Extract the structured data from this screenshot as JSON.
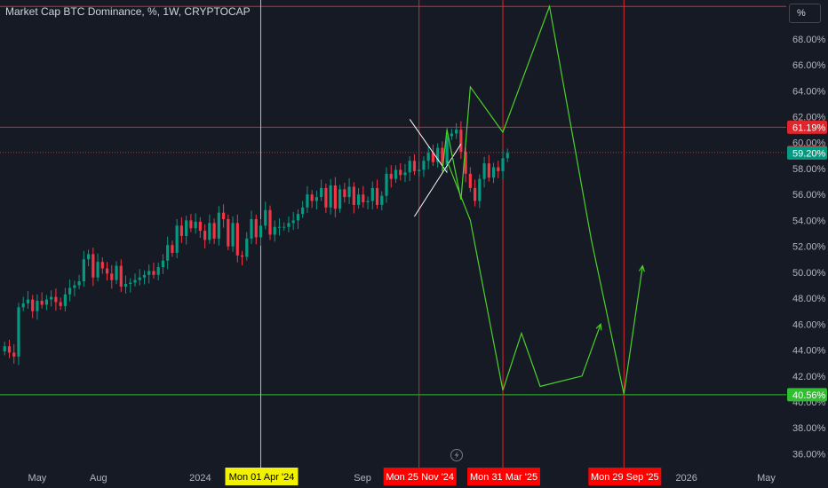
{
  "header": {
    "title": "Market Cap BTC Dominance, %, 1W, CRYPTOCAP",
    "unit_button": "%"
  },
  "colors": {
    "background": "#161a25",
    "up": "#089981",
    "down": "#f23645",
    "red_line": "#e0262c",
    "green_line": "#2fbf2f",
    "projection": "#4cd12a",
    "crosshair": "#c9c93a",
    "grid_text": "#b2b5be"
  },
  "chart_data": {
    "type": "candlestick",
    "title": "Market Cap BTC Dominance, %, 1W, CRYPTOCAP",
    "x_range": [
      "2023-03-06",
      "2026-05-31"
    ],
    "ylim": [
      34.8,
      71.0
    ],
    "y_ticks": [
      36,
      38,
      40,
      42,
      44,
      46,
      48,
      50,
      52,
      54,
      56,
      58,
      60,
      62,
      64,
      66,
      68
    ],
    "x_tick_labels": [
      {
        "label": "May",
        "date": "2023-05-01"
      },
      {
        "label": "Aug",
        "date": "2023-08-01"
      },
      {
        "label": "2024",
        "date": "2024-01-01"
      },
      {
        "label": "Sep",
        "date": "2024-09-01"
      },
      {
        "label": "2026",
        "date": "2026-01-01"
      },
      {
        "label": "May",
        "date": "2026-05-01"
      }
    ],
    "price_labels": [
      {
        "value": 61.19,
        "text": "61.19%",
        "color": "#e0262c"
      },
      {
        "value": 59.24,
        "text": "59.24%",
        "color": "#e0262c"
      },
      {
        "value": 59.2,
        "text": "59.20%",
        "color": "#089981"
      },
      {
        "value": 40.56,
        "text": "40.56%",
        "color": "#2fbf2f"
      }
    ],
    "horizontal_lines": [
      {
        "value": 70.5,
        "color": "#e0262c",
        "style": "solid"
      },
      {
        "value": 61.19,
        "color": "#e0262c",
        "style": "solid"
      },
      {
        "value": 59.24,
        "color": "#e0262c",
        "style": "dotted"
      },
      {
        "value": 40.56,
        "color": "#2fbf2f",
        "style": "solid"
      }
    ],
    "vertical_markers": [
      {
        "date": "2024-04-01",
        "text": "Mon 01 Apr '24",
        "bg": "#f2f200",
        "fg": "#000000"
      },
      {
        "date": "2024-11-25",
        "text": "Mon 25 Nov '24",
        "bg": "#ff0000",
        "fg": "#ffffff"
      },
      {
        "date": "2025-03-31",
        "text": "Mon 31 Mar '25",
        "bg": "#ff0000",
        "fg": "#ffffff"
      },
      {
        "date": "2025-09-29",
        "text": "Mon 29 Sep '25",
        "bg": "#ff0000",
        "fg": "#ffffff"
      }
    ],
    "candles_weekly_close": [
      44.3,
      43.8,
      43.5,
      47.3,
      47.6,
      47.9,
      47.0,
      47.8,
      47.5,
      47.9,
      48.1,
      47.7,
      47.4,
      48.3,
      48.8,
      49.0,
      49.3,
      51.0,
      51.4,
      49.6,
      50.8,
      50.3,
      49.9,
      49.4,
      50.5,
      48.9,
      49.1,
      49.2,
      49.4,
      49.6,
      49.8,
      50.1,
      49.8,
      50.4,
      50.9,
      52.1,
      51.5,
      53.6,
      52.8,
      54.0,
      53.4,
      53.9,
      53.2,
      52.5,
      53.8,
      52.6,
      54.6,
      54.1,
      52.0,
      53.8,
      51.3,
      51.2,
      52.6,
      54.1,
      52.7,
      53.6,
      54.8,
      52.9,
      53.5,
      53.5,
      53.5,
      53.8,
      54.0,
      54.5,
      55.0,
      56.0,
      55.5,
      55.8,
      56.5,
      55.0,
      56.7,
      54.9,
      56.4,
      55.8,
      56.6,
      55.2,
      56.0,
      55.4,
      55.5,
      56.5,
      55.2,
      55.9,
      57.6,
      57.2,
      57.9,
      57.5,
      57.7,
      58.6,
      57.8,
      57.9,
      58.6,
      59.2,
      58.5,
      59.6,
      58.3,
      60.5,
      60.7,
      61.0,
      59.3,
      57.6,
      56.5,
      55.5,
      57.2,
      58.4,
      57.3,
      58.1,
      57.8,
      58.8,
      59.2
    ],
    "wedge_lines": [
      {
        "from": [
          "2024-11-11",
          61.8
        ],
        "to": [
          "2025-01-06",
          57.7
        ]
      },
      {
        "from": [
          "2024-11-18",
          54.3
        ],
        "to": [
          "2025-01-27",
          59.9
        ]
      }
    ],
    "projection_1": [
      [
        "2024-12-30",
        57.8
      ],
      [
        "2025-01-06",
        61.0
      ],
      [
        "2025-01-27",
        55.6
      ],
      [
        "2025-02-10",
        64.3
      ],
      [
        "2025-03-31",
        60.8
      ],
      [
        "2025-06-09",
        70.5
      ],
      [
        "2025-08-11",
        52.5
      ],
      [
        "2025-09-29",
        40.6
      ],
      [
        "2025-10-27",
        50.5
      ]
    ],
    "projection_2": [
      [
        "2025-01-06",
        58.6
      ],
      [
        "2025-02-10",
        54.0
      ],
      [
        "2025-03-31",
        40.9
      ],
      [
        "2025-04-28",
        45.3
      ],
      [
        "2025-05-26",
        41.2
      ],
      [
        "2025-07-28",
        42.0
      ],
      [
        "2025-08-25",
        46.0
      ]
    ]
  }
}
